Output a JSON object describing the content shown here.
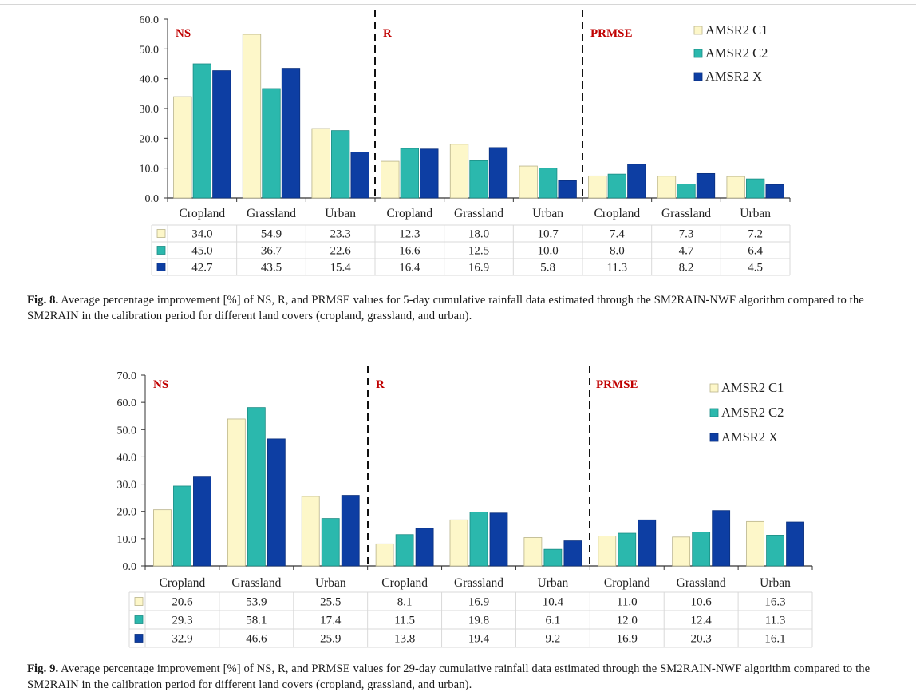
{
  "colors": {
    "c1": "#fdf7c9",
    "c1_stroke": "#b9b38a",
    "c2": "#2bb8ad",
    "c2_stroke": "#1b8c84",
    "x": "#0d3ea3",
    "x_stroke": "#0a2f7c",
    "panel_label": "#c00000"
  },
  "chart_data": [
    {
      "type": "bar",
      "title": "",
      "panels": [
        "NS",
        "R",
        "PRMSE"
      ],
      "categories": [
        "Cropland",
        "Grassland",
        "Urban",
        "Cropland",
        "Grassland",
        "Urban",
        "Cropland",
        "Grassland",
        "Urban"
      ],
      "series": [
        {
          "name": "AMSR2 C1",
          "values": [
            "34.0",
            "54.9",
            "23.3",
            "12.3",
            "18.0",
            "10.7",
            "7.4",
            "7.3",
            "7.2"
          ]
        },
        {
          "name": "AMSR2 C2",
          "values": [
            "45.0",
            "36.7",
            "22.6",
            "16.6",
            "12.5",
            "10.0",
            "8.0",
            "4.7",
            "6.4"
          ]
        },
        {
          "name": "AMSR2 X",
          "values": [
            "42.7",
            "43.5",
            "15.4",
            "16.4",
            "16.9",
            "5.8",
            "11.3",
            "8.2",
            "4.5"
          ]
        }
      ],
      "ylim": [
        0,
        60
      ],
      "yticks": [
        "0.0",
        "10.0",
        "20.0",
        "30.0",
        "40.0",
        "50.0",
        "60.0"
      ],
      "xlabel": "",
      "ylabel": "",
      "legend": "top-right",
      "data_table": true
    },
    {
      "type": "bar",
      "title": "",
      "panels": [
        "NS",
        "R",
        "PRMSE"
      ],
      "categories": [
        "Cropland",
        "Grassland",
        "Urban",
        "Cropland",
        "Grassland",
        "Urban",
        "Cropland",
        "Grassland",
        "Urban"
      ],
      "series": [
        {
          "name": "AMSR2 C1",
          "values": [
            "20.6",
            "53.9",
            "25.5",
            "8.1",
            "16.9",
            "10.4",
            "11.0",
            "10.6",
            "16.3"
          ]
        },
        {
          "name": "AMSR2 C2",
          "values": [
            "29.3",
            "58.1",
            "17.4",
            "11.5",
            "19.8",
            "6.1",
            "12.0",
            "12.4",
            "11.3"
          ]
        },
        {
          "name": "AMSR2 X",
          "values": [
            "32.9",
            "46.6",
            "25.9",
            "13.8",
            "19.4",
            "9.2",
            "16.9",
            "20.3",
            "16.1"
          ]
        }
      ],
      "ylim": [
        0,
        70
      ],
      "yticks": [
        "0.0",
        "10.0",
        "20.0",
        "30.0",
        "40.0",
        "50.0",
        "60.0",
        "70.0"
      ],
      "xlabel": "",
      "ylabel": "",
      "legend": "top-right",
      "data_table": true
    }
  ],
  "captions": [
    {
      "label": "Fig. 8.",
      "text": "Average percentage improvement [%] of NS, R, and PRMSE values for 5-day cumulative rainfall data estimated through the SM2RAIN-NWF algorithm compared to the SM2RAIN in the calibration period for different land covers (cropland, grassland, and urban)."
    },
    {
      "label": "Fig. 9.",
      "text": "Average percentage improvement [%] of NS, R, and PRMSE values for 29-day cumulative rainfall data estimated through the SM2RAIN-NWF algorithm compared to the SM2RAIN in the calibration period for different land covers (cropland, grassland, and urban)."
    }
  ]
}
